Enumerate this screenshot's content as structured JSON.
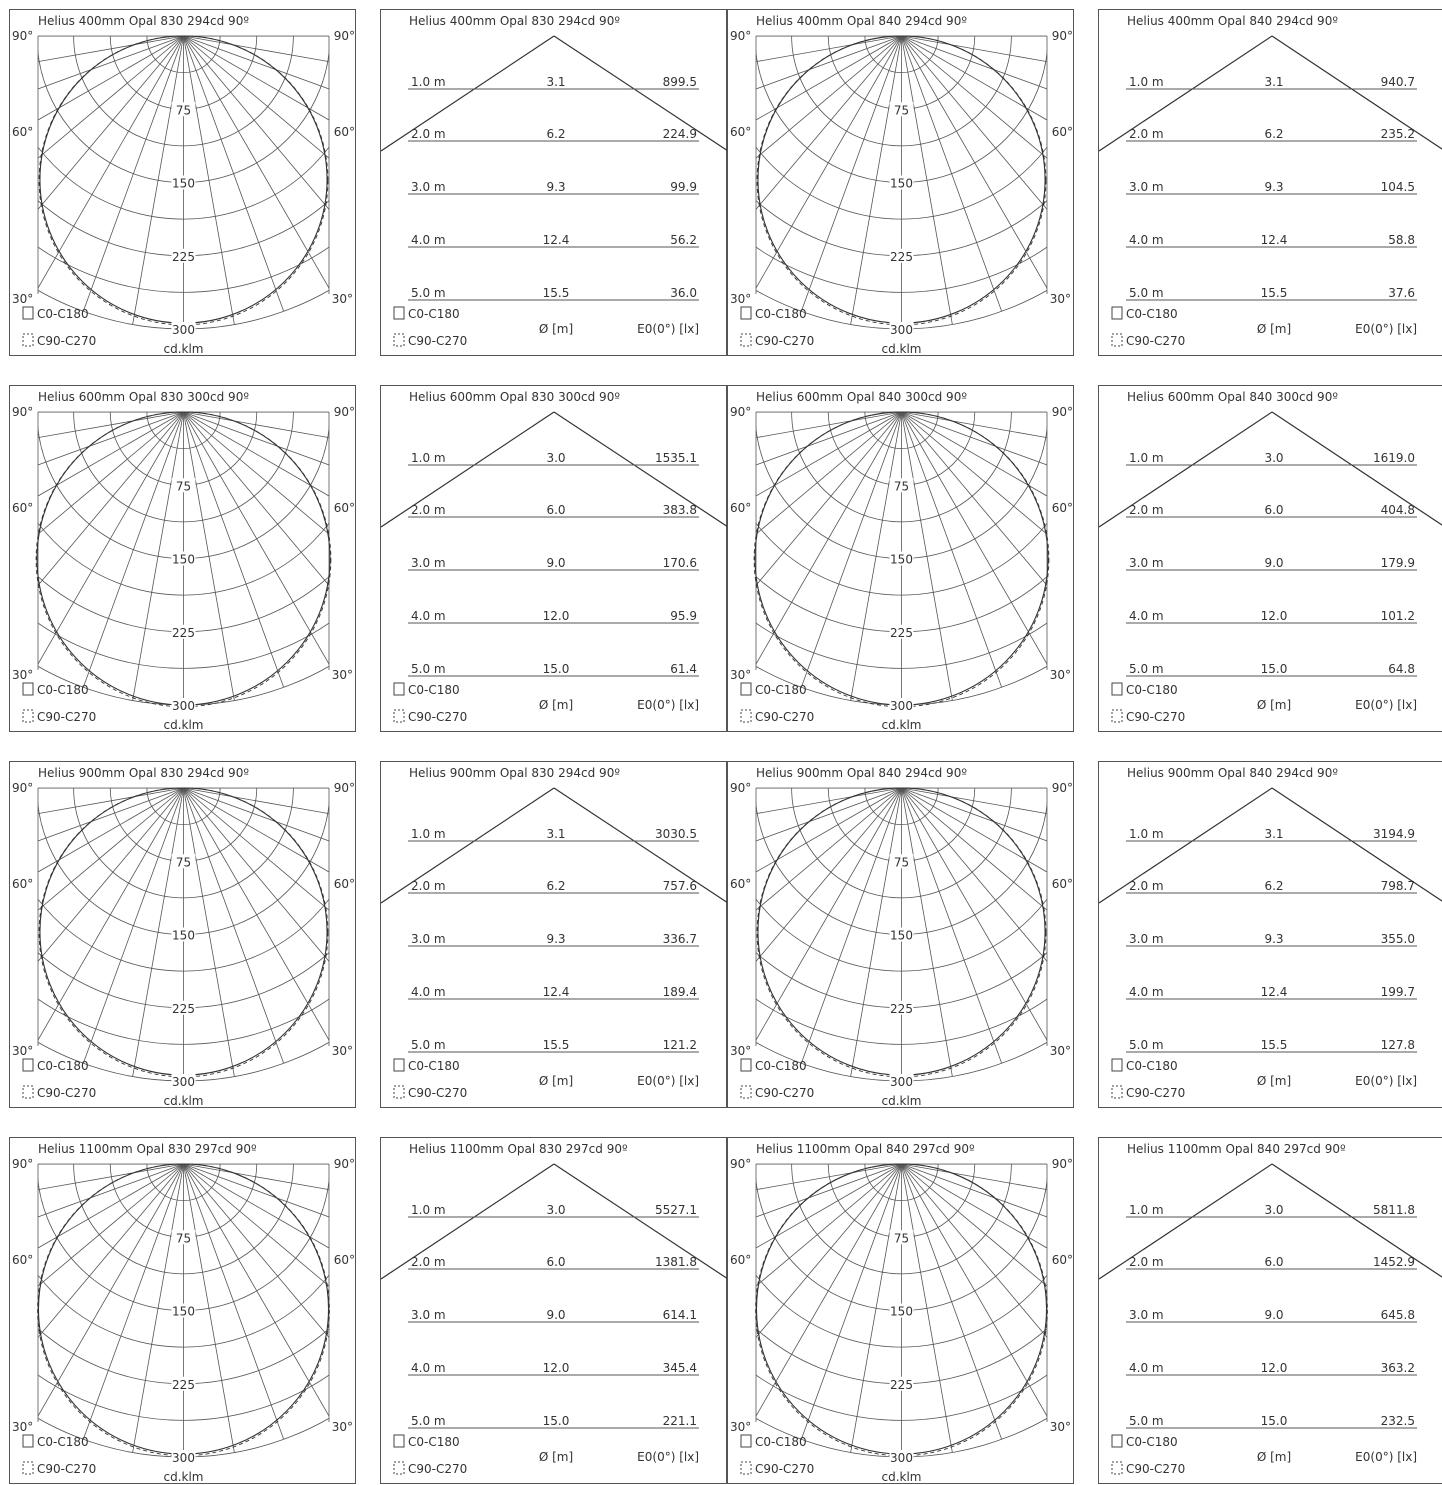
{
  "legend": {
    "c0_label": "C0-C180",
    "c90_label": "C90-C270",
    "polar_unit": "cd.klm",
    "diameter_header": "Ø [m]",
    "illuminance_header": "E0(0°) [lx]",
    "angle_labels": [
      "90°",
      "60°",
      "30°"
    ]
  },
  "chart_data": [
    {
      "type": "polar",
      "title": "Helius 400mm Opal 830 294cd 90º",
      "radial_ticks": [
        75,
        150,
        225,
        300
      ],
      "rmax": 300,
      "series": [
        {
          "name": "C0-C180",
          "style": "solid",
          "peak_cd": 294
        },
        {
          "name": "C90-C270",
          "style": "dashed",
          "peak_cd": 294
        }
      ]
    },
    {
      "type": "table",
      "title": "Helius 400mm Opal 830 294cd 90º",
      "beam_angle": 90,
      "distances": [
        "1.0 m",
        "2.0 m",
        "3.0 m",
        "4.0 m",
        "5.0 m"
      ],
      "diameters": [
        "3.1",
        "6.2",
        "9.3",
        "12.4",
        "15.5"
      ],
      "illuminance": [
        "899.5",
        "224.9",
        "99.9",
        "56.2",
        "36.0"
      ]
    },
    {
      "type": "polar",
      "title": "Helius 400mm Opal 840 294cd 90º",
      "radial_ticks": [
        75,
        150,
        225,
        300
      ],
      "rmax": 300,
      "series": [
        {
          "name": "C0-C180",
          "style": "solid",
          "peak_cd": 294
        },
        {
          "name": "C90-C270",
          "style": "dashed",
          "peak_cd": 294
        }
      ]
    },
    {
      "type": "table",
      "title": "Helius 400mm Opal 840 294cd 90º",
      "beam_angle": 90,
      "distances": [
        "1.0 m",
        "2.0 m",
        "3.0 m",
        "4.0 m",
        "5.0 m"
      ],
      "diameters": [
        "3.1",
        "6.2",
        "9.3",
        "12.4",
        "15.5"
      ],
      "illuminance": [
        "940.7",
        "235.2",
        "104.5",
        "58.8",
        "37.6"
      ]
    },
    {
      "type": "polar",
      "title": "Helius 600mm Opal 830 300cd 90º",
      "radial_ticks": [
        75,
        150,
        225,
        300
      ],
      "rmax": 300,
      "series": [
        {
          "name": "C0-C180",
          "style": "solid",
          "peak_cd": 300
        },
        {
          "name": "C90-C270",
          "style": "dashed",
          "peak_cd": 300
        }
      ]
    },
    {
      "type": "table",
      "title": "Helius 600mm Opal 830 300cd 90º",
      "beam_angle": 90,
      "distances": [
        "1.0 m",
        "2.0 m",
        "3.0 m",
        "4.0 m",
        "5.0 m"
      ],
      "diameters": [
        "3.0",
        "6.0",
        "9.0",
        "12.0",
        "15.0"
      ],
      "illuminance": [
        "1535.1",
        "383.8",
        "170.6",
        "95.9",
        "61.4"
      ]
    },
    {
      "type": "polar",
      "title": "Helius 600mm Opal 840 300cd 90º",
      "radial_ticks": [
        75,
        150,
        225,
        300
      ],
      "rmax": 300,
      "series": [
        {
          "name": "C0-C180",
          "style": "solid",
          "peak_cd": 300
        },
        {
          "name": "C90-C270",
          "style": "dashed",
          "peak_cd": 300
        }
      ]
    },
    {
      "type": "table",
      "title": "Helius 600mm Opal 840 300cd 90º",
      "beam_angle": 90,
      "distances": [
        "1.0 m",
        "2.0 m",
        "3.0 m",
        "4.0 m",
        "5.0 m"
      ],
      "diameters": [
        "3.0",
        "6.0",
        "9.0",
        "12.0",
        "15.0"
      ],
      "illuminance": [
        "1619.0",
        "404.8",
        "179.9",
        "101.2",
        "64.8"
      ]
    },
    {
      "type": "polar",
      "title": "Helius 900mm Opal 830 294cd 90º",
      "radial_ticks": [
        75,
        150,
        225,
        300
      ],
      "rmax": 300,
      "series": [
        {
          "name": "C0-C180",
          "style": "solid",
          "peak_cd": 294
        },
        {
          "name": "C90-C270",
          "style": "dashed",
          "peak_cd": 294
        }
      ]
    },
    {
      "type": "table",
      "title": "Helius 900mm Opal 830 294cd 90º",
      "beam_angle": 90,
      "distances": [
        "1.0 m",
        "2.0 m",
        "3.0 m",
        "4.0 m",
        "5.0 m"
      ],
      "diameters": [
        "3.1",
        "6.2",
        "9.3",
        "12.4",
        "15.5"
      ],
      "illuminance": [
        "3030.5",
        "757.6",
        "336.7",
        "189.4",
        "121.2"
      ]
    },
    {
      "type": "polar",
      "title": "Helius 900mm Opal 840 294cd 90º",
      "radial_ticks": [
        75,
        150,
        225,
        300
      ],
      "rmax": 300,
      "series": [
        {
          "name": "C0-C180",
          "style": "solid",
          "peak_cd": 294
        },
        {
          "name": "C90-C270",
          "style": "dashed",
          "peak_cd": 294
        }
      ]
    },
    {
      "type": "table",
      "title": "Helius 900mm Opal 840 294cd 90º",
      "beam_angle": 90,
      "distances": [
        "1.0 m",
        "2.0 m",
        "3.0 m",
        "4.0 m",
        "5.0 m"
      ],
      "diameters": [
        "3.1",
        "6.2",
        "9.3",
        "12.4",
        "15.5"
      ],
      "illuminance": [
        "3194.9",
        "798.7",
        "355.0",
        "199.7",
        "127.8"
      ]
    },
    {
      "type": "polar",
      "title": "Helius 1100mm Opal 830 297cd 90º",
      "radial_ticks": [
        75,
        150,
        225,
        300
      ],
      "rmax": 300,
      "series": [
        {
          "name": "C0-C180",
          "style": "solid",
          "peak_cd": 297
        },
        {
          "name": "C90-C270",
          "style": "dashed",
          "peak_cd": 297
        }
      ]
    },
    {
      "type": "table",
      "title": "Helius 1100mm Opal 830 297cd 90º",
      "beam_angle": 90,
      "distances": [
        "1.0 m",
        "2.0 m",
        "3.0 m",
        "4.0 m",
        "5.0 m"
      ],
      "diameters": [
        "3.0",
        "6.0",
        "9.0",
        "12.0",
        "15.0"
      ],
      "illuminance": [
        "5527.1",
        "1381.8",
        "614.1",
        "345.4",
        "221.1"
      ]
    },
    {
      "type": "polar",
      "title": "Helius 1100mm Opal 840 297cd 90º",
      "radial_ticks": [
        75,
        150,
        225,
        300
      ],
      "rmax": 300,
      "series": [
        {
          "name": "C0-C180",
          "style": "solid",
          "peak_cd": 297
        },
        {
          "name": "C90-C270",
          "style": "dashed",
          "peak_cd": 297
        }
      ]
    },
    {
      "type": "table",
      "title": "Helius 1100mm Opal 840 297cd 90º",
      "beam_angle": 90,
      "distances": [
        "1.0 m",
        "2.0 m",
        "3.0 m",
        "4.0 m",
        "5.0 m"
      ],
      "diameters": [
        "3.0",
        "6.0",
        "9.0",
        "12.0",
        "15.0"
      ],
      "illuminance": [
        "5811.8",
        "1452.9",
        "645.8",
        "363.2",
        "232.5"
      ]
    }
  ]
}
